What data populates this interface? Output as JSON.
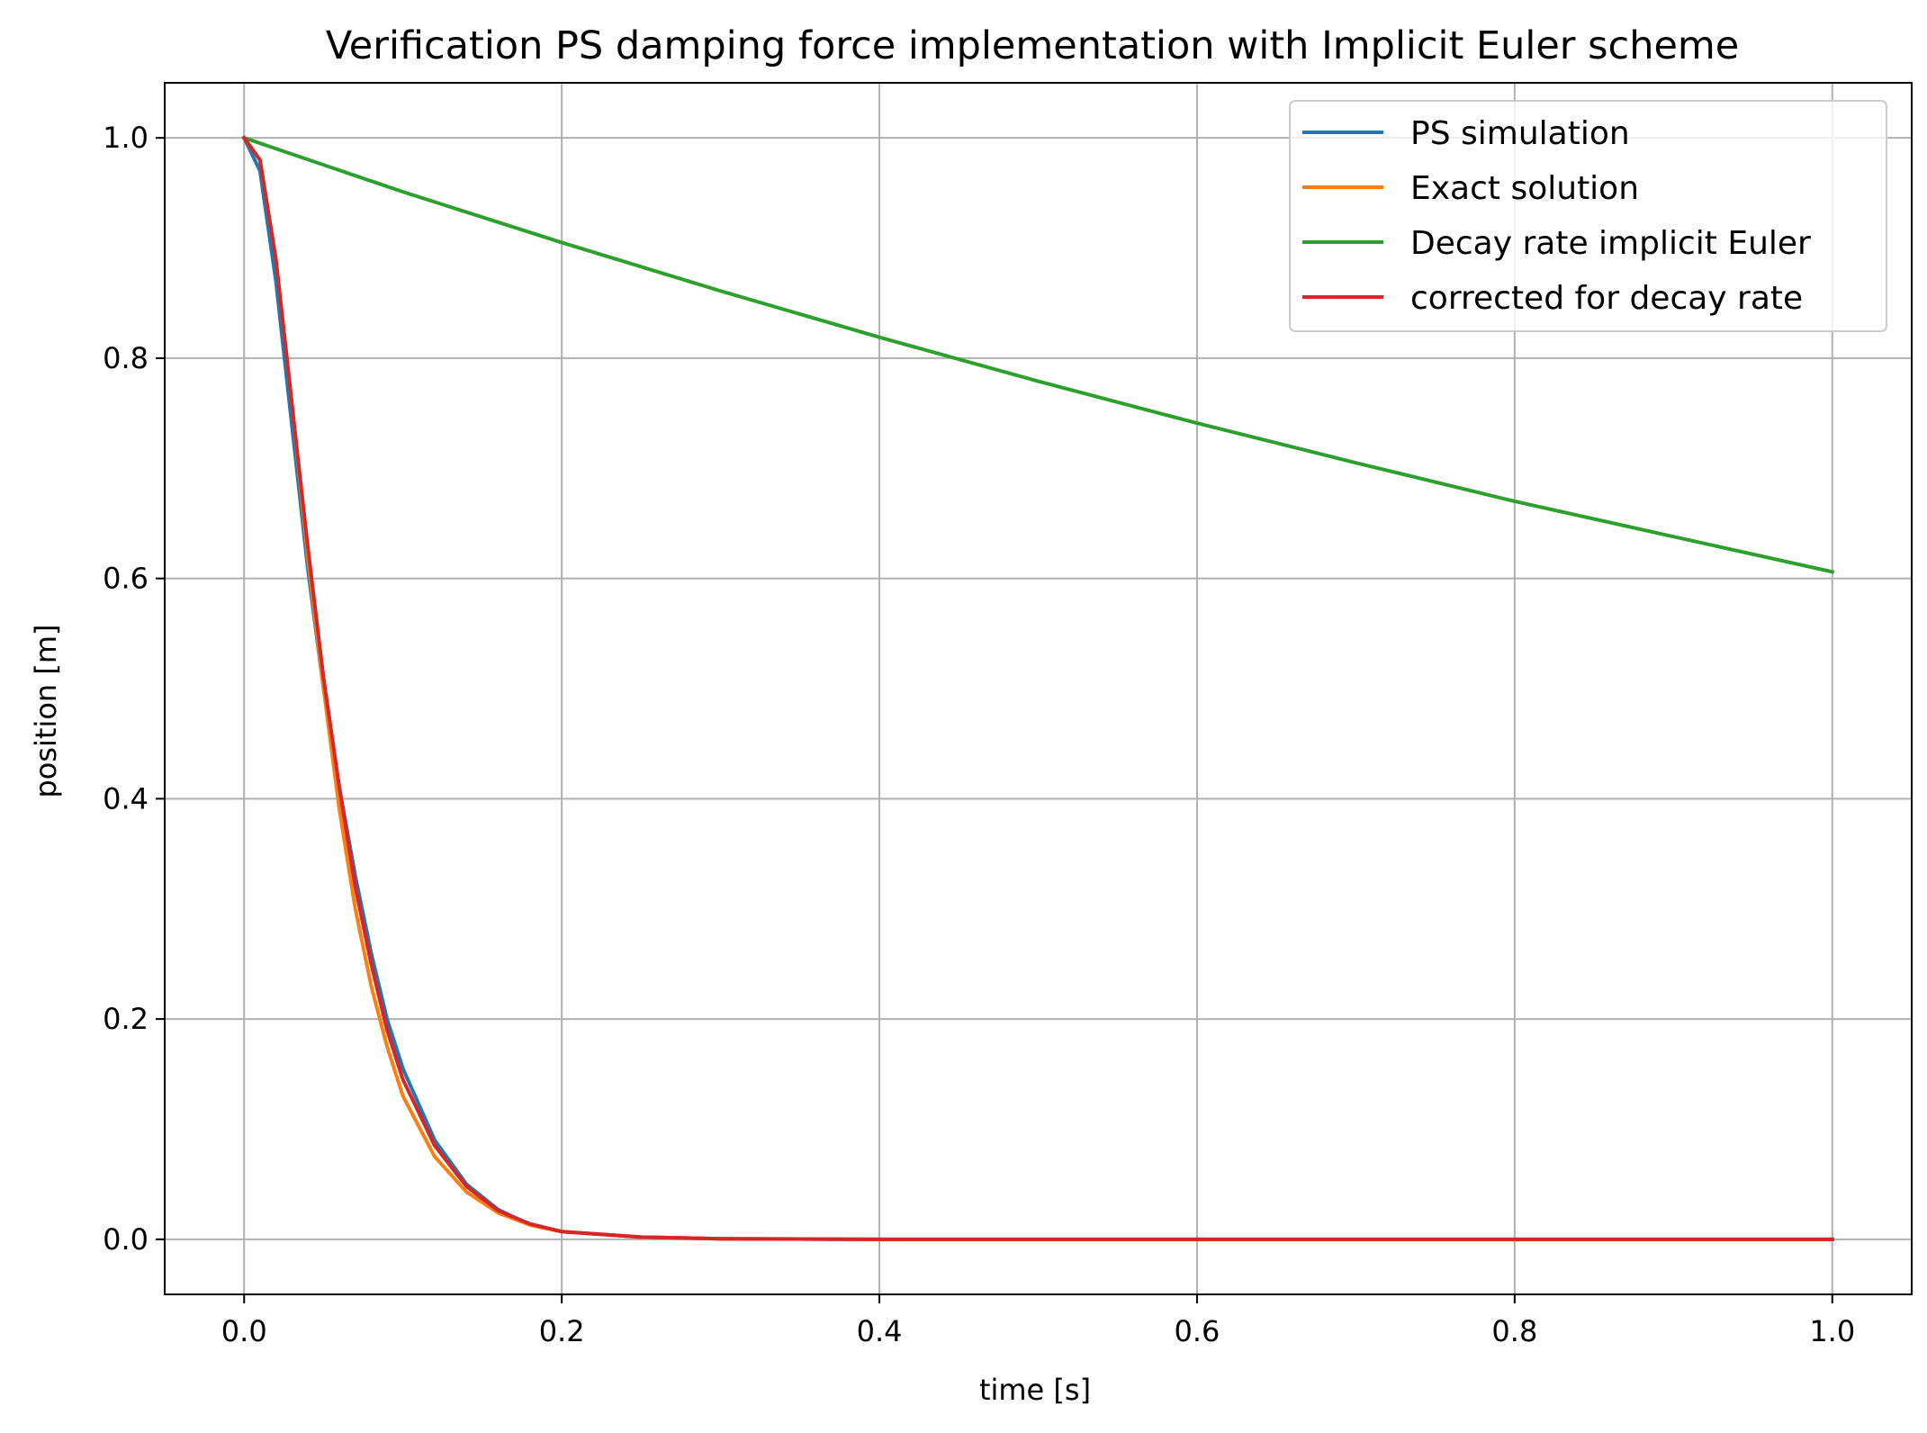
{
  "chart_data": {
    "type": "line",
    "title": "Verification PS damping force implementation with Implicit Euler scheme",
    "xlabel": "time [s]",
    "ylabel": "position [m]",
    "xlim": [
      -0.05,
      1.05
    ],
    "ylim": [
      -0.05,
      1.05
    ],
    "xticks": [
      0.0,
      0.2,
      0.4,
      0.6,
      0.8,
      1.0
    ],
    "xtick_labels": [
      "0.0",
      "0.2",
      "0.4",
      "0.6",
      "0.8",
      "1.0"
    ],
    "yticks": [
      0.0,
      0.2,
      0.4,
      0.6,
      0.8,
      1.0
    ],
    "ytick_labels": [
      "0.0",
      "0.2",
      "0.4",
      "0.6",
      "0.8",
      "1.0"
    ],
    "grid": true,
    "legend_position": "top-right",
    "series": [
      {
        "name": "PS simulation",
        "color": "#1f77b4",
        "x": [
          0.0,
          0.01,
          0.02,
          0.03,
          0.04,
          0.05,
          0.06,
          0.07,
          0.08,
          0.09,
          0.1,
          0.12,
          0.14,
          0.16,
          0.18,
          0.2,
          0.25,
          0.3,
          0.4,
          0.5,
          0.6,
          0.7,
          0.8,
          0.9,
          1.0
        ],
        "y": [
          1.0,
          0.97,
          0.87,
          0.74,
          0.61,
          0.5,
          0.41,
          0.33,
          0.26,
          0.2,
          0.155,
          0.09,
          0.05,
          0.027,
          0.013,
          0.007,
          0.002,
          0.0005,
          0.0,
          0.0,
          0.0,
          0.0,
          0.0,
          0.0,
          0.0
        ]
      },
      {
        "name": "Exact solution",
        "color": "#ff7f0e",
        "x": [
          0.0,
          0.01,
          0.02,
          0.03,
          0.04,
          0.05,
          0.06,
          0.07,
          0.08,
          0.09,
          0.1,
          0.12,
          0.14,
          0.16,
          0.18,
          0.2,
          0.25,
          0.3,
          0.4,
          0.5,
          0.6,
          0.7,
          0.8,
          0.9,
          1.0
        ],
        "y": [
          1.0,
          0.98,
          0.89,
          0.76,
          0.62,
          0.5,
          0.39,
          0.3,
          0.23,
          0.175,
          0.13,
          0.075,
          0.043,
          0.024,
          0.013,
          0.007,
          0.002,
          0.0005,
          0.0,
          0.0,
          0.0,
          0.0,
          0.0,
          0.0,
          0.0
        ]
      },
      {
        "name": "Decay rate implicit Euler",
        "color": "#2ca02c",
        "x": [
          0.0,
          0.1,
          0.2,
          0.3,
          0.4,
          0.5,
          0.6,
          0.7,
          0.8,
          0.9,
          1.0
        ],
        "y": [
          1.0,
          0.951,
          0.905,
          0.861,
          0.819,
          0.779,
          0.741,
          0.705,
          0.67,
          0.638,
          0.606
        ]
      },
      {
        "name": "corrected for decay rate",
        "color": "#d62728",
        "x": [
          0.0,
          0.01,
          0.02,
          0.03,
          0.04,
          0.05,
          0.06,
          0.07,
          0.08,
          0.09,
          0.1,
          0.12,
          0.14,
          0.16,
          0.18,
          0.2,
          0.25,
          0.3,
          0.4,
          0.5,
          0.6,
          0.7,
          0.8,
          0.9,
          1.0
        ],
        "y": [
          1.0,
          0.98,
          0.89,
          0.76,
          0.63,
          0.51,
          0.41,
          0.32,
          0.25,
          0.19,
          0.145,
          0.085,
          0.048,
          0.026,
          0.014,
          0.007,
          0.002,
          0.0005,
          0.0,
          0.0,
          0.0,
          0.0,
          0.0,
          0.0,
          0.0
        ]
      }
    ]
  }
}
